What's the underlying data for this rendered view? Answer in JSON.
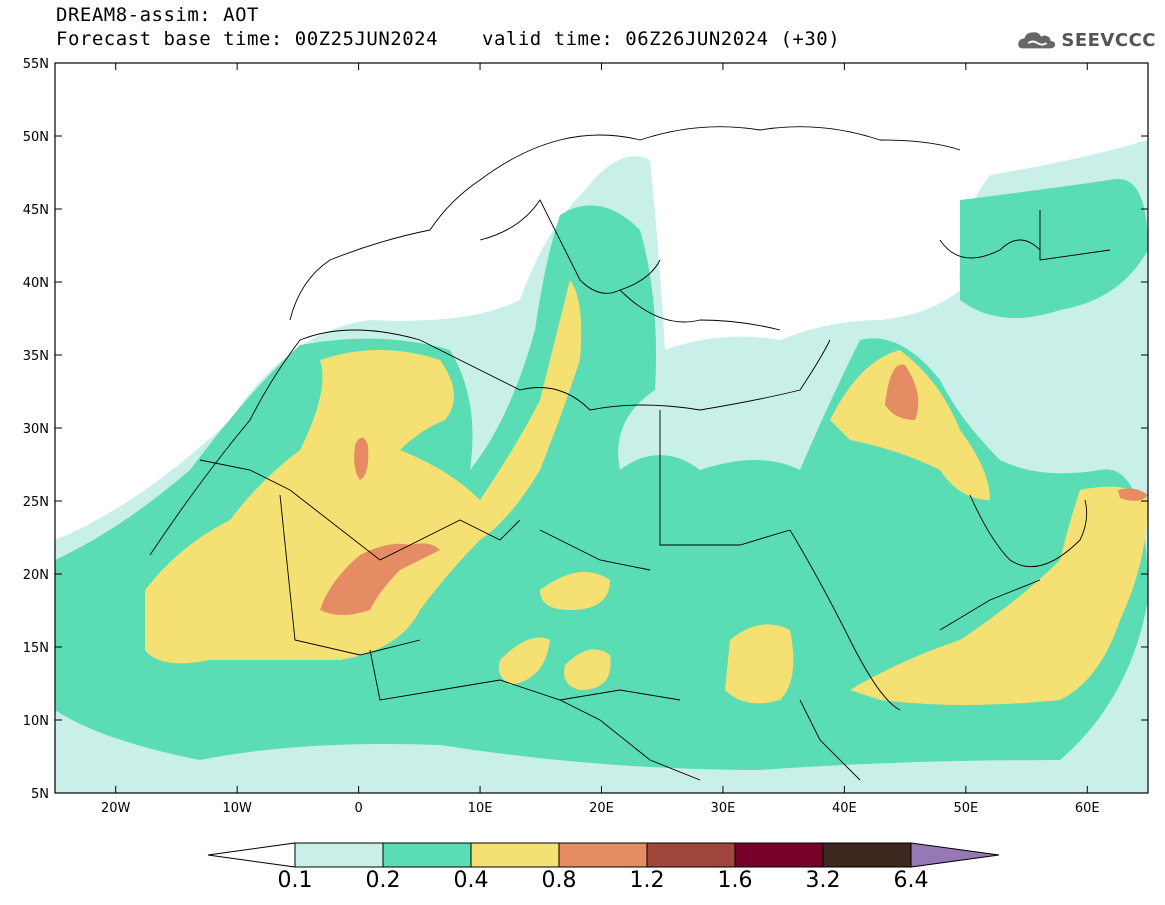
{
  "header": {
    "title_line1": "DREAM8-assim: AOT",
    "title_line2": "Forecast base time: 00Z25JUN2024",
    "valid_time": "valid time: 06Z26JUN2024 (+30)",
    "logo_text": "SEEVCCC"
  },
  "map": {
    "lon_range": [
      -25,
      65
    ],
    "lat_range": [
      5,
      55
    ],
    "lat_ticks": [
      "55N",
      "50N",
      "45N",
      "40N",
      "35N",
      "30N",
      "25N",
      "20N",
      "15N",
      "10N",
      "5N"
    ],
    "lon_ticks": [
      "20W",
      "10W",
      "0",
      "10E",
      "20E",
      "30E",
      "40E",
      "50E",
      "60E"
    ],
    "grid": false
  },
  "colorbar": {
    "levels": [
      "0.1",
      "0.2",
      "0.4",
      "0.8",
      "1.2",
      "1.6",
      "3.2",
      "6.4"
    ],
    "colors": [
      "#c8f0e8",
      "#5adcb4",
      "#f5e173",
      "#e58c64",
      "#a0463c",
      "#780028",
      "#3c281e",
      "#9678b4"
    ]
  }
}
